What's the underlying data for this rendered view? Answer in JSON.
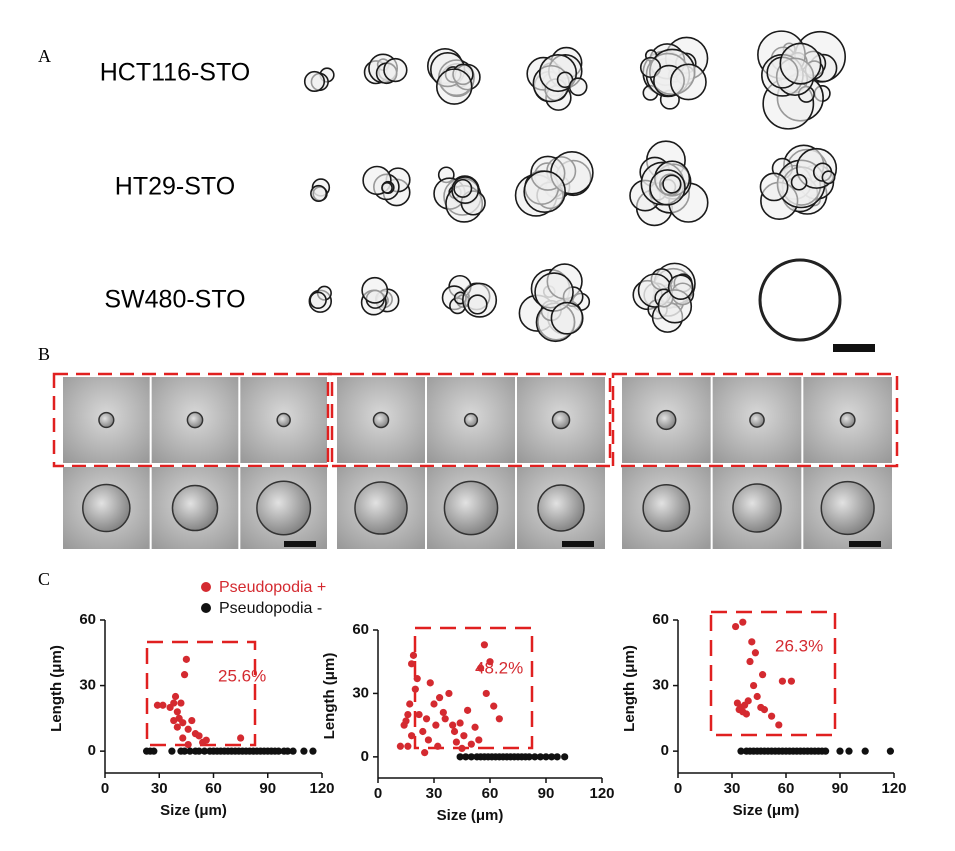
{
  "panels": {
    "a": {
      "label": "A",
      "rows": [
        "HCT116-STO",
        "HT29-STO",
        "SW480-STO"
      ]
    },
    "b": {
      "label": "B"
    },
    "c": {
      "label": "C"
    }
  },
  "chart_data": [
    {
      "type": "scatter",
      "xlabel": "Size (μm)",
      "ylabel": "Length (μm)",
      "annotation": "25.6%",
      "xlim": [
        0,
        120
      ],
      "ylim": [
        -10,
        60
      ],
      "xticks": [
        0,
        30,
        60,
        90,
        120
      ],
      "yticks": [
        0,
        30,
        60
      ],
      "series": [
        {
          "name": "Pseudopodia +",
          "color": "#d42a30",
          "x": [
            29,
            32,
            36,
            38,
            39,
            40,
            41,
            42,
            44,
            45,
            43,
            46,
            48,
            50,
            52,
            54,
            56,
            38,
            40,
            75,
            43,
            46
          ],
          "values": [
            21,
            21,
            20,
            22,
            25,
            18,
            15,
            22,
            35,
            42,
            13,
            10,
            14,
            8,
            7,
            4,
            5,
            14,
            11,
            6,
            6,
            3
          ]
        },
        {
          "name": "Pseudopodia -",
          "color": "#111111",
          "x": [
            23,
            25,
            27,
            37,
            42,
            44,
            47,
            50,
            52,
            55,
            58,
            60,
            62,
            64,
            66,
            68,
            70,
            72,
            74,
            76,
            78,
            80,
            82,
            84,
            86,
            88,
            90,
            92,
            94,
            96,
            99,
            101,
            104,
            110,
            115
          ],
          "values": [
            0,
            0,
            0,
            0,
            0,
            0,
            0,
            0,
            0,
            0,
            0,
            0,
            0,
            0,
            0,
            0,
            0,
            0,
            0,
            0,
            0,
            0,
            0,
            0,
            0,
            0,
            0,
            0,
            0,
            0,
            0,
            0,
            0,
            0,
            0
          ]
        }
      ]
    },
    {
      "type": "scatter",
      "xlabel": "Size (μm)",
      "ylabel": "Length (μm)",
      "annotation": "48.2%",
      "xlim": [
        0,
        120
      ],
      "ylim": [
        -10,
        60
      ],
      "xticks": [
        0,
        30,
        60,
        90,
        120
      ],
      "yticks": [
        0,
        30,
        60
      ],
      "series": [
        {
          "color": "#d42a30",
          "x": [
            12,
            14,
            15,
            16,
            17,
            18,
            19,
            18,
            20,
            22,
            24,
            26,
            27,
            28,
            30,
            31,
            32,
            35,
            36,
            38,
            40,
            41,
            42,
            44,
            46,
            48,
            50,
            52,
            54,
            55,
            57,
            58,
            60,
            62,
            65,
            21,
            33,
            45,
            25,
            16
          ],
          "values": [
            5,
            15,
            17,
            20,
            25,
            44,
            48,
            10,
            32,
            20,
            12,
            18,
            8,
            35,
            25,
            15,
            5,
            21,
            18,
            30,
            15,
            12,
            7,
            16,
            10,
            22,
            6,
            14,
            8,
            42,
            53,
            30,
            45,
            24,
            18,
            37,
            28,
            4,
            2,
            5
          ]
        },
        {
          "color": "#111111",
          "x": [
            44,
            47,
            50,
            53,
            55,
            57,
            59,
            61,
            63,
            65,
            67,
            69,
            71,
            73,
            75,
            77,
            79,
            81,
            84,
            87,
            90,
            93,
            96,
            100
          ],
          "values": [
            0,
            0,
            0,
            0,
            0,
            0,
            0,
            0,
            0,
            0,
            0,
            0,
            0,
            0,
            0,
            0,
            0,
            0,
            0,
            0,
            0,
            0,
            0,
            0
          ]
        }
      ]
    },
    {
      "type": "scatter",
      "xlabel": "Size (μm)",
      "ylabel": "Length (μm)",
      "annotation": "26.3%",
      "xlim": [
        0,
        120
      ],
      "ylim": [
        -10,
        60
      ],
      "xticks": [
        0,
        30,
        60,
        90,
        120
      ],
      "yticks": [
        0,
        30,
        60
      ],
      "series": [
        {
          "color": "#d42a30",
          "x": [
            32,
            36,
            33,
            34,
            35,
            36,
            37,
            38,
            39,
            40,
            41,
            42,
            44,
            46,
            47,
            48,
            52,
            56,
            58,
            63,
            43
          ],
          "values": [
            57,
            59,
            22,
            19,
            20,
            18,
            21,
            17,
            23,
            41,
            50,
            30,
            25,
            20,
            35,
            19,
            16,
            12,
            32,
            32,
            45
          ]
        },
        {
          "color": "#111111",
          "x": [
            35,
            38,
            40,
            42,
            44,
            46,
            48,
            50,
            52,
            54,
            56,
            58,
            60,
            62,
            64,
            66,
            68,
            70,
            72,
            74,
            76,
            78,
            80,
            82,
            90,
            95,
            104,
            118
          ],
          "values": [
            0,
            0,
            0,
            0,
            0,
            0,
            0,
            0,
            0,
            0,
            0,
            0,
            0,
            0,
            0,
            0,
            0,
            0,
            0,
            0,
            0,
            0,
            0,
            0,
            0,
            0,
            0,
            0
          ]
        }
      ]
    }
  ]
}
